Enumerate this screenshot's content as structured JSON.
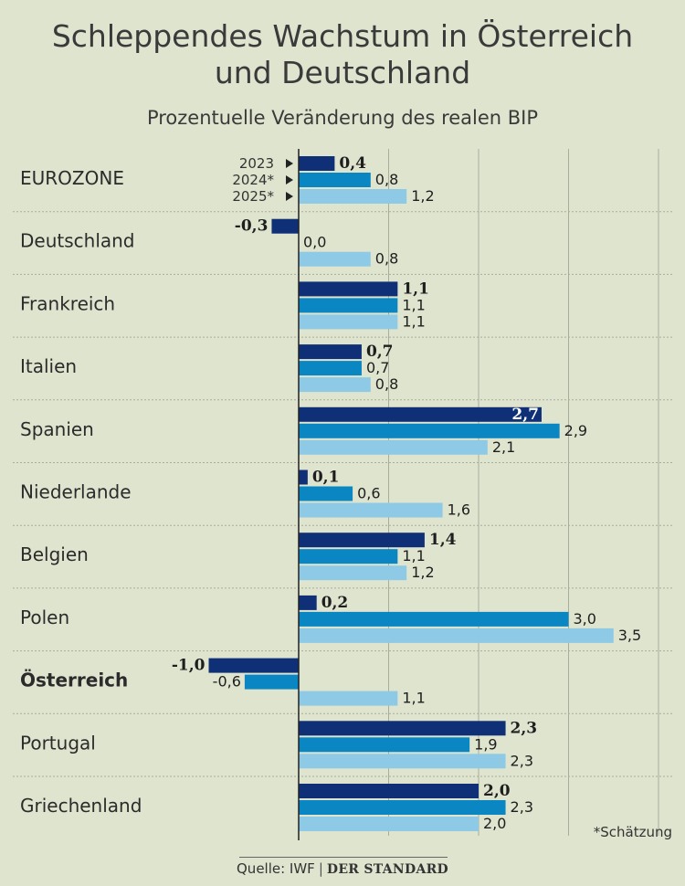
{
  "title_lines": [
    "Schleppendes Wachstum in Österreich",
    "und Deutschland"
  ],
  "subtitle": "Prozentuelle Veränderung des realen BIP",
  "footnote": "*Schätzung",
  "source": {
    "label": "Quelle: IWF",
    "brand": "DER STANDARD"
  },
  "colors": {
    "2023": "#0f3077",
    "2024*": "#0a86c2",
    "2025*": "#8ecae6",
    "grid": "#a9ad9c",
    "axis": "#222222",
    "background": "#dfe4cf"
  },
  "chart_data": {
    "type": "bar",
    "orientation": "horizontal",
    "categories": [
      "EUROZONE",
      "Deutschland",
      "Frankreich",
      "Italien",
      "Spanien",
      "Niederlande",
      "Belgien",
      "Polen",
      "Österreich",
      "Portugal",
      "Griechenland"
    ],
    "highlight_category": "Österreich",
    "series": [
      {
        "name": "2023",
        "values": [
          0.4,
          -0.3,
          1.1,
          0.7,
          2.7,
          0.1,
          1.4,
          0.2,
          -1.0,
          2.3,
          2.0
        ],
        "labels": [
          "0,4",
          "-0,3",
          "1,1",
          "0,7",
          "2,7",
          "0,1",
          "1,4",
          "0,2",
          "-1,0",
          "2,3",
          "2,0"
        ]
      },
      {
        "name": "2024*",
        "values": [
          0.8,
          0.0,
          1.1,
          0.7,
          2.9,
          0.6,
          1.1,
          3.0,
          -0.6,
          1.9,
          2.3
        ],
        "labels": [
          "0,8",
          "0,0",
          "1,1",
          "0,7",
          "2,9",
          "0,6",
          "1,1",
          "3,0",
          "-0,6",
          "1,9",
          "2,3"
        ]
      },
      {
        "name": "2025*",
        "values": [
          1.2,
          0.8,
          1.1,
          0.8,
          2.1,
          1.6,
          1.2,
          3.5,
          1.1,
          2.3,
          2.0
        ],
        "labels": [
          "1,2",
          "0,8",
          "1,1",
          "0,8",
          "2,1",
          "1,6",
          "1,2",
          "3,5",
          "1,1",
          "2,3",
          "2,0"
        ]
      }
    ],
    "xlim": [
      -1.0,
      4.0
    ],
    "legend": "inline-first-group",
    "grid": true
  }
}
